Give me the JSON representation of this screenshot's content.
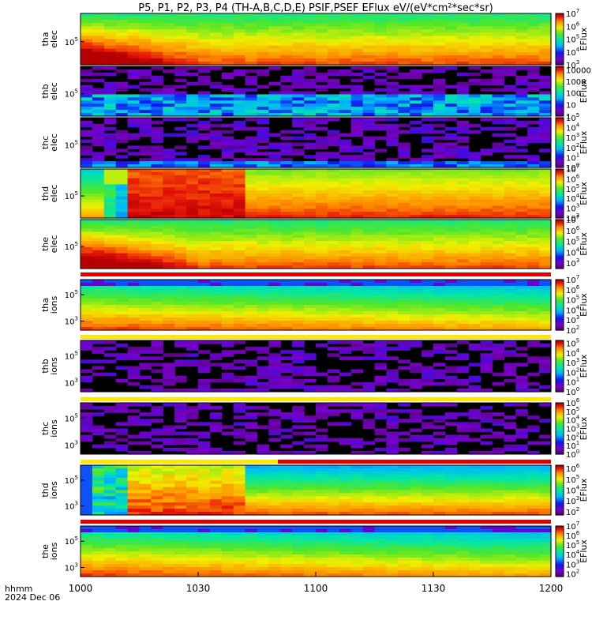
{
  "chart_data": {
    "type": "heatmap",
    "title": "P5, P1, P2, P3, P4 (TH-A,B,C,D,E) PSIF,PSEF EFlux eV/(eV*cm²*sec*sr)",
    "x_axis": {
      "label_line1": "hhmm",
      "label_line2": "2024 Dec 06",
      "range": [
        "10:00",
        "12:00"
      ],
      "ticks": [
        "1000",
        "1030",
        "1100",
        "1130",
        "1200"
      ]
    },
    "colorbar_label": "EFlux",
    "panels": [
      {
        "probe": "tha",
        "species": "elec",
        "ylabel": "tha elec",
        "yticks": [
          {
            "v": 5,
            "t": "10",
            "e": "5"
          }
        ],
        "cbar_exp": [
          3,
          7
        ],
        "cbar_labels": [
          {
            "e": 7
          },
          {
            "e": 6
          },
          {
            "e": 5
          },
          {
            "e": 4
          },
          {
            "e": 3
          }
        ],
        "pattern": "elec_full",
        "flag": null
      },
      {
        "probe": "thb",
        "species": "elec",
        "ylabel": "thb elec",
        "yticks": [
          {
            "v": 5,
            "t": "10",
            "e": "5"
          }
        ],
        "cbar_exp": [
          0,
          4.3
        ],
        "cbar_labels": [
          {
            "t": "10000",
            "v": 4
          },
          {
            "t": "1000",
            "v": 3
          },
          {
            "t": "100",
            "v": 2
          },
          {
            "t": "10",
            "v": 1
          },
          {
            "t": "1",
            "v": 0
          }
        ],
        "pattern": "elec_noise_low",
        "flag": null
      },
      {
        "probe": "thc",
        "species": "elec",
        "ylabel": "thc elec",
        "yticks": [
          {
            "v": 5,
            "t": "10",
            "e": "5"
          }
        ],
        "cbar_exp": [
          0,
          5
        ],
        "cbar_labels": [
          {
            "e": 5
          },
          {
            "e": 4
          },
          {
            "e": 3
          },
          {
            "e": 2
          },
          {
            "e": 1
          },
          {
            "e": 0
          }
        ],
        "pattern": "elec_noise_high",
        "flag": null
      },
      {
        "probe": "thd",
        "species": "elec",
        "ylabel": "thd elec",
        "yticks": [
          {
            "v": 5,
            "t": "10",
            "e": "5"
          }
        ],
        "cbar_exp": [
          2,
          7
        ],
        "cbar_labels": [
          {
            "e": 7
          },
          {
            "e": 6
          },
          {
            "e": 5
          },
          {
            "e": 4
          },
          {
            "e": 3
          },
          {
            "e": 2
          }
        ],
        "pattern": "elec_injection",
        "flag": null
      },
      {
        "probe": "the",
        "species": "elec",
        "ylabel": "the elec",
        "yticks": [
          {
            "v": 5,
            "t": "10",
            "e": "5"
          }
        ],
        "cbar_exp": [
          2.5,
          7
        ],
        "cbar_labels": [
          {
            "e": 7
          },
          {
            "e": 6
          },
          {
            "e": 5
          },
          {
            "e": 4
          },
          {
            "e": 3
          }
        ],
        "pattern": "elec_full",
        "flag": "red"
      },
      {
        "probe": "tha",
        "species": "ions",
        "ylabel": "tha ions",
        "yticks": [
          {
            "v": 5,
            "t": "10",
            "e": "5"
          },
          {
            "v": 3,
            "t": "10",
            "e": "3"
          }
        ],
        "cbar_exp": [
          2,
          7
        ],
        "cbar_labels": [
          {
            "e": 7
          },
          {
            "e": 6
          },
          {
            "e": 5
          },
          {
            "e": 4
          },
          {
            "e": 3
          },
          {
            "e": 2
          }
        ],
        "pattern": "ions_full",
        "flag": "red_yellow"
      },
      {
        "probe": "thb",
        "species": "ions",
        "ylabel": "thb ions",
        "yticks": [
          {
            "v": 5,
            "t": "10",
            "e": "5"
          },
          {
            "v": 3,
            "t": "10",
            "e": "3"
          }
        ],
        "cbar_exp": [
          0,
          5.3
        ],
        "cbar_labels": [
          {
            "e": 5
          },
          {
            "e": 4
          },
          {
            "e": 3
          },
          {
            "e": 2
          },
          {
            "e": 1
          },
          {
            "e": 0
          }
        ],
        "pattern": "ions_noise",
        "flag": "yellow"
      },
      {
        "probe": "thc",
        "species": "ions",
        "ylabel": "thc ions",
        "yticks": [
          {
            "v": 5,
            "t": "10",
            "e": "5"
          },
          {
            "v": 3,
            "t": "10",
            "e": "3"
          }
        ],
        "cbar_exp": [
          0,
          6
        ],
        "cbar_labels": [
          {
            "e": 6
          },
          {
            "e": 5
          },
          {
            "e": 4
          },
          {
            "e": 3
          },
          {
            "e": 2
          },
          {
            "e": 1
          },
          {
            "e": 0
          }
        ],
        "pattern": "ions_noise",
        "flag": "yellow_red"
      },
      {
        "probe": "thd",
        "species": "ions",
        "ylabel": "thd ions",
        "yticks": [
          {
            "v": 5,
            "t": "10",
            "e": "5"
          },
          {
            "v": 3,
            "t": "10",
            "e": "3"
          }
        ],
        "cbar_exp": [
          1.7,
          6.3
        ],
        "cbar_labels": [
          {
            "e": 6
          },
          {
            "e": 5
          },
          {
            "e": 4
          },
          {
            "e": 3
          },
          {
            "e": 2
          }
        ],
        "pattern": "ions_injection",
        "flag": "red"
      },
      {
        "probe": "the",
        "species": "ions",
        "ylabel": "the ions",
        "yticks": [
          {
            "v": 5,
            "t": "10",
            "e": "5"
          },
          {
            "v": 3,
            "t": "10",
            "e": "3"
          }
        ],
        "cbar_exp": [
          1.7,
          7
        ],
        "cbar_labels": [
          {
            "e": 7
          },
          {
            "e": 6
          },
          {
            "e": 5
          },
          {
            "e": 4
          },
          {
            "e": 3
          },
          {
            "e": 2
          }
        ],
        "pattern": "ions_full",
        "flag": null
      }
    ]
  }
}
